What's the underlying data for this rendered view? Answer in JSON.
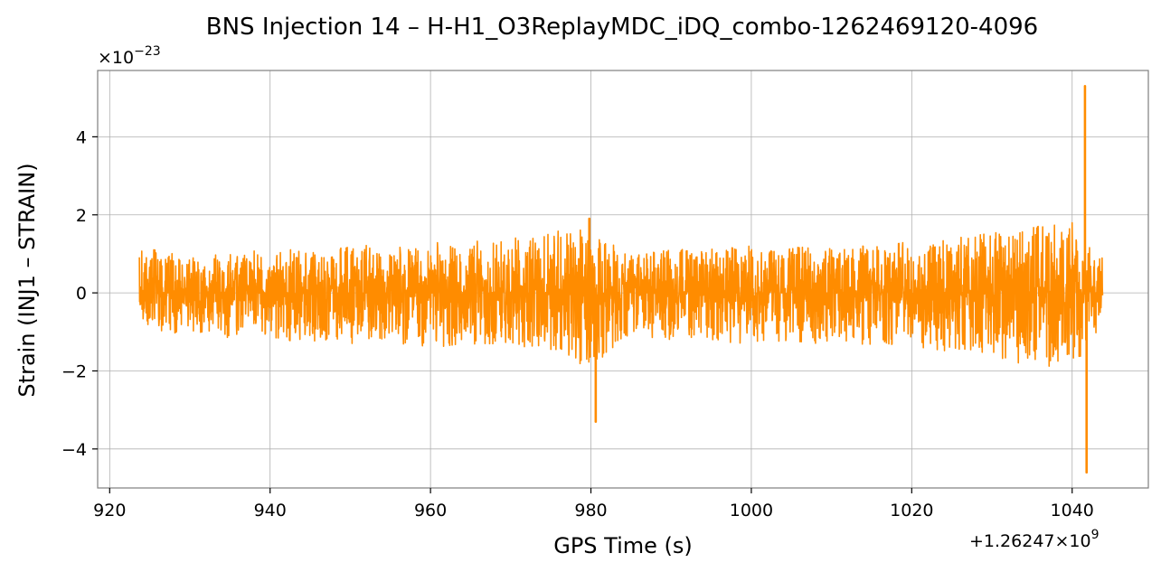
{
  "chart_data": {
    "type": "line",
    "title": "BNS Injection 14 – H-H1_O3ReplayMDC_iDQ_combo-1262469120-4096",
    "xlabel": "GPS Time (s)",
    "ylabel": "Strain (INJ1 – STRAIN)",
    "x_offset_label": "+1.26247×10",
    "x_offset_exponent": "9",
    "y_scale_label": "×10",
    "y_scale_exponent": "−23",
    "xlim": [
      918.5,
      1049.5
    ],
    "ylim": [
      -5.0,
      5.7
    ],
    "x_ticks": [
      920,
      940,
      960,
      980,
      1000,
      1020,
      1040
    ],
    "x_tick_labels": [
      "920",
      "940",
      "960",
      "980",
      "1000",
      "1020",
      "1040"
    ],
    "y_ticks": [
      -4,
      -2,
      0,
      2,
      4
    ],
    "y_tick_labels": [
      "−4",
      "−2",
      "0",
      "2",
      "4"
    ],
    "grid": true,
    "series": [
      {
        "color": "#ff8c00",
        "x_start": 923.7,
        "x_end": 1043.8,
        "noise_envelope": [
          [
            923.7,
            1.2,
            -0.9
          ],
          [
            930,
            1.0,
            -1.1
          ],
          [
            940,
            1.1,
            -1.2
          ],
          [
            950,
            1.2,
            -1.3
          ],
          [
            960,
            1.3,
            -1.4
          ],
          [
            970,
            1.4,
            -1.3
          ],
          [
            975,
            1.6,
            -1.6
          ],
          [
            980,
            1.7,
            -1.9
          ],
          [
            985,
            1.0,
            -1.1
          ],
          [
            990,
            1.1,
            -1.2
          ],
          [
            1000,
            1.2,
            -1.3
          ],
          [
            1010,
            1.2,
            -1.3
          ],
          [
            1020,
            1.3,
            -1.4
          ],
          [
            1030,
            1.6,
            -1.7
          ],
          [
            1040,
            1.8,
            -2.0
          ],
          [
            1043.8,
            0.9,
            -0.8
          ]
        ],
        "spikes": [
          {
            "x": 979.8,
            "y": 1.9
          },
          {
            "x": 980.6,
            "y": -3.3
          },
          {
            "x": 1041.6,
            "y": 5.3
          },
          {
            "x": 1041.8,
            "y": -4.6
          }
        ]
      }
    ]
  }
}
